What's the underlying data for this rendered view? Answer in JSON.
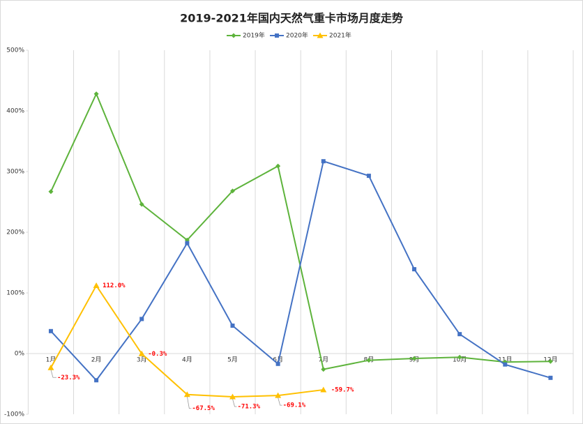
{
  "chart_data": {
    "type": "line",
    "title": "2019-2021年国内天然气重卡市场月度走势",
    "categories": [
      "1月",
      "2月",
      "3月",
      "4月",
      "5月",
      "6月",
      "7月",
      "8月",
      "9月",
      "10月",
      "11月",
      "12月"
    ],
    "series": [
      {
        "name": "2019年",
        "color": "#5db33b",
        "marker": "diamond",
        "values": [
          267,
          428,
          246,
          187,
          268,
          309,
          -26,
          -11,
          -8,
          -6,
          -14,
          -13
        ]
      },
      {
        "name": "2020年",
        "color": "#4472c4",
        "marker": "square",
        "values": [
          37,
          -44,
          57,
          182,
          46,
          -17,
          317,
          293,
          139,
          32,
          -18,
          -40
        ]
      },
      {
        "name": "2021年",
        "color": "#ffc000",
        "marker": "triangle",
        "values": [
          -23.3,
          112.0,
          -0.3,
          -67.5,
          -71.3,
          -69.1,
          -59.7,
          null,
          null,
          null,
          null,
          null
        ],
        "value_labels": [
          "-23.3%",
          "112.0%",
          "-0.3%",
          "-67.5%",
          "-71.3%",
          "-69.1%",
          "-59.7%",
          null,
          null,
          null,
          null,
          null
        ]
      }
    ],
    "ylim": [
      -100,
      500
    ],
    "yticks": [
      {
        "value": -100,
        "label": "-100%"
      },
      {
        "value": 0,
        "label": "0%"
      },
      {
        "value": 100,
        "label": "100%"
      },
      {
        "value": 200,
        "label": "200%"
      },
      {
        "value": 300,
        "label": "300%"
      },
      {
        "value": 400,
        "label": "400%"
      },
      {
        "value": 500,
        "label": "500%"
      }
    ],
    "legend": "top",
    "grid": "vertical"
  }
}
